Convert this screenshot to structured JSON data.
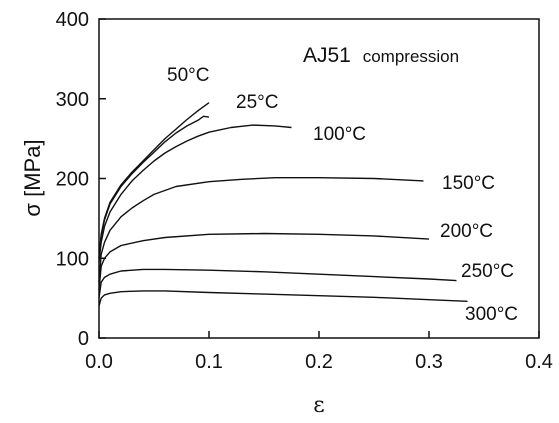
{
  "chart_data": {
    "type": "line",
    "title": "",
    "annotation": {
      "main": "AJ51",
      "sub": "compression"
    },
    "xlabel": "ε",
    "ylabel": "σ [MPa]",
    "xlim": [
      0,
      0.4
    ],
    "ylim": [
      0,
      400
    ],
    "x_ticks": [
      0.0,
      0.1,
      0.2,
      0.3,
      0.4
    ],
    "x_tick_labels": [
      "0.0",
      "0.1",
      "0.2",
      "0.3",
      "0.4"
    ],
    "y_ticks": [
      0,
      100,
      200,
      300,
      400
    ],
    "y_tick_labels": [
      "0",
      "100",
      "200",
      "300",
      "400"
    ],
    "grid": false,
    "legend": "none",
    "series": [
      {
        "name": "50°C",
        "points": [
          [
            0,
            100
          ],
          [
            0.002,
            130
          ],
          [
            0.005,
            150
          ],
          [
            0.01,
            170
          ],
          [
            0.02,
            192
          ],
          [
            0.03,
            208
          ],
          [
            0.04,
            222
          ],
          [
            0.05,
            236
          ],
          [
            0.06,
            250
          ],
          [
            0.07,
            262
          ],
          [
            0.08,
            274
          ],
          [
            0.09,
            285
          ],
          [
            0.1,
            295
          ]
        ]
      },
      {
        "name": "25°C",
        "points": [
          [
            0,
            100
          ],
          [
            0.002,
            128
          ],
          [
            0.005,
            148
          ],
          [
            0.01,
            168
          ],
          [
            0.02,
            190
          ],
          [
            0.03,
            206
          ],
          [
            0.04,
            220
          ],
          [
            0.05,
            233
          ],
          [
            0.06,
            246
          ],
          [
            0.07,
            257
          ],
          [
            0.08,
            266
          ],
          [
            0.09,
            273
          ],
          [
            0.095,
            278
          ],
          [
            0.1,
            277
          ]
        ]
      },
      {
        "name": "100°C",
        "points": [
          [
            0,
            95
          ],
          [
            0.002,
            120
          ],
          [
            0.005,
            140
          ],
          [
            0.01,
            158
          ],
          [
            0.02,
            180
          ],
          [
            0.03,
            197
          ],
          [
            0.04,
            210
          ],
          [
            0.05,
            222
          ],
          [
            0.06,
            232
          ],
          [
            0.07,
            240
          ],
          [
            0.08,
            247
          ],
          [
            0.09,
            253
          ],
          [
            0.1,
            258
          ],
          [
            0.12,
            264
          ],
          [
            0.14,
            267
          ],
          [
            0.16,
            266
          ],
          [
            0.175,
            264
          ]
        ]
      },
      {
        "name": "150°C",
        "points": [
          [
            0,
            70
          ],
          [
            0.002,
            105
          ],
          [
            0.005,
            120
          ],
          [
            0.01,
            135
          ],
          [
            0.02,
            152
          ],
          [
            0.03,
            163
          ],
          [
            0.04,
            172
          ],
          [
            0.05,
            180
          ],
          [
            0.07,
            190
          ],
          [
            0.1,
            196
          ],
          [
            0.13,
            199
          ],
          [
            0.16,
            201
          ],
          [
            0.2,
            201
          ],
          [
            0.25,
            200
          ],
          [
            0.295,
            197
          ]
        ]
      },
      {
        "name": "200°C",
        "points": [
          [
            0,
            60
          ],
          [
            0.002,
            90
          ],
          [
            0.005,
            100
          ],
          [
            0.01,
            108
          ],
          [
            0.02,
            116
          ],
          [
            0.04,
            122
          ],
          [
            0.06,
            126
          ],
          [
            0.1,
            130
          ],
          [
            0.15,
            131
          ],
          [
            0.2,
            130
          ],
          [
            0.25,
            128
          ],
          [
            0.3,
            124
          ]
        ]
      },
      {
        "name": "250°C",
        "points": [
          [
            0,
            50
          ],
          [
            0.002,
            70
          ],
          [
            0.005,
            76
          ],
          [
            0.01,
            80
          ],
          [
            0.02,
            84
          ],
          [
            0.04,
            86
          ],
          [
            0.06,
            86
          ],
          [
            0.1,
            85
          ],
          [
            0.15,
            83
          ],
          [
            0.2,
            80
          ],
          [
            0.25,
            77
          ],
          [
            0.3,
            74
          ],
          [
            0.325,
            72
          ]
        ]
      },
      {
        "name": "300°C",
        "points": [
          [
            0,
            40
          ],
          [
            0.002,
            50
          ],
          [
            0.005,
            54
          ],
          [
            0.01,
            56
          ],
          [
            0.02,
            58
          ],
          [
            0.04,
            59
          ],
          [
            0.06,
            59
          ],
          [
            0.1,
            57
          ],
          [
            0.15,
            55
          ],
          [
            0.2,
            53
          ],
          [
            0.25,
            51
          ],
          [
            0.3,
            48
          ],
          [
            0.335,
            46
          ]
        ]
      }
    ]
  }
}
